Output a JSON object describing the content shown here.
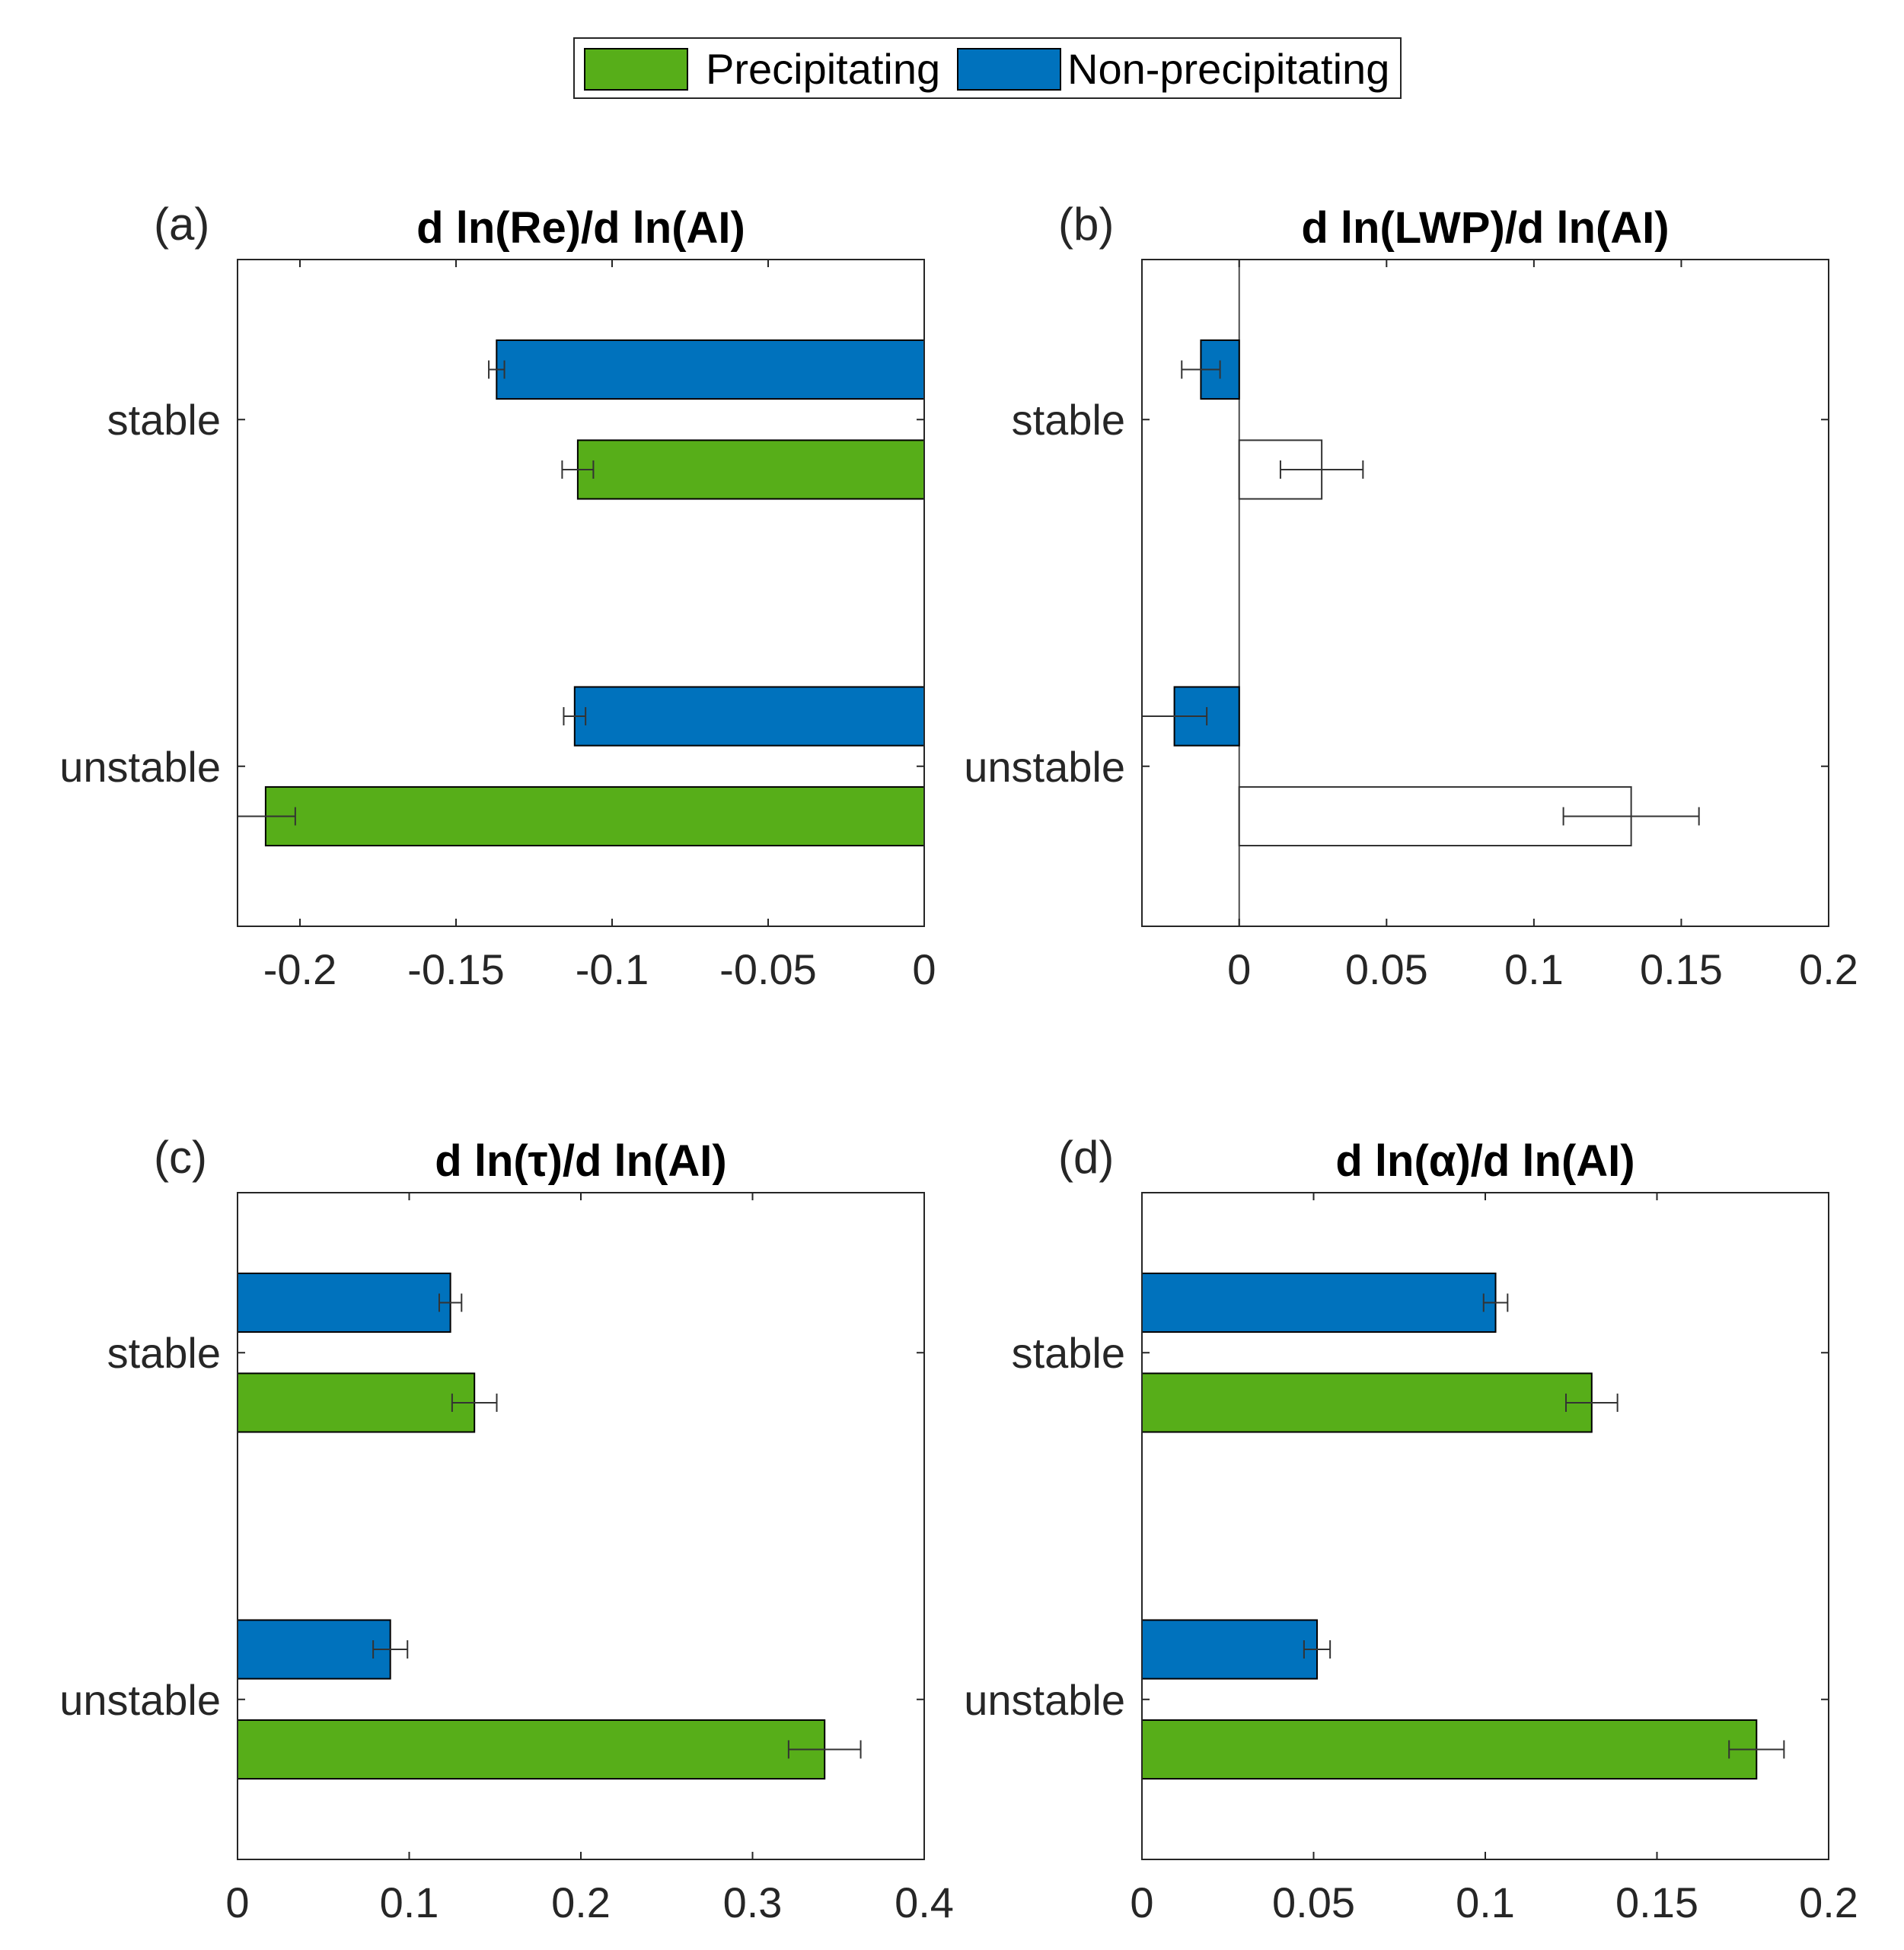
{
  "legend": {
    "items": [
      {
        "label": "Precipitating",
        "color": "#57ae19"
      },
      {
        "label": "Non-precipitating",
        "color": "#0072bd"
      }
    ]
  },
  "chart_data": [
    {
      "type": "bar",
      "orientation": "horizontal",
      "panel_label": "(a)",
      "title": "d ln(Re)/d ln(AI)",
      "categories": [
        "stable",
        "unstable"
      ],
      "xlim": [
        -0.22,
        0
      ],
      "xticks": [
        -0.2,
        -0.15,
        -0.1,
        -0.05,
        0
      ],
      "xtick_labels": [
        "-0.2",
        "-0.15",
        "-0.1",
        "-0.05",
        "0"
      ],
      "series": [
        {
          "name": "Non-precipitating",
          "values": [
            -0.137,
            -0.112
          ],
          "errors": [
            0.0025,
            0.0035
          ],
          "filled": [
            true,
            true
          ]
        },
        {
          "name": "Precipitating",
          "values": [
            -0.111,
            -0.211
          ],
          "errors": [
            0.005,
            0.0095
          ],
          "filled": [
            true,
            true
          ]
        }
      ]
    },
    {
      "type": "bar",
      "orientation": "horizontal",
      "panel_label": "(b)",
      "title": "d ln(LWP)/d ln(AI)",
      "categories": [
        "stable",
        "unstable"
      ],
      "xlim": [
        -0.033,
        0.2
      ],
      "xticks": [
        0,
        0.05,
        0.1,
        0.15,
        0.2
      ],
      "xtick_labels": [
        "0",
        "0.05",
        "0.1",
        "0.15",
        "0.2"
      ],
      "series": [
        {
          "name": "Non-precipitating",
          "values": [
            -0.013,
            -0.022
          ],
          "errors": [
            0.0065,
            0.011
          ],
          "filled": [
            true,
            true
          ]
        },
        {
          "name": "Precipitating",
          "values": [
            0.028,
            0.133
          ],
          "errors": [
            0.014,
            0.023
          ],
          "filled": [
            false,
            false
          ]
        }
      ]
    },
    {
      "type": "bar",
      "orientation": "horizontal",
      "panel_label": "(c)",
      "title": "d ln(τ)/d ln(AI)",
      "categories": [
        "stable",
        "unstable"
      ],
      "xlim": [
        0,
        0.4
      ],
      "xticks": [
        0,
        0.1,
        0.2,
        0.3,
        0.4
      ],
      "xtick_labels": [
        "0",
        "0.1",
        "0.2",
        "0.3",
        "0.4"
      ],
      "series": [
        {
          "name": "Non-precipitating",
          "values": [
            0.124,
            0.089
          ],
          "errors": [
            0.0065,
            0.01
          ],
          "filled": [
            true,
            true
          ]
        },
        {
          "name": "Precipitating",
          "values": [
            0.138,
            0.342
          ],
          "errors": [
            0.013,
            0.021
          ],
          "filled": [
            true,
            true
          ]
        }
      ]
    },
    {
      "type": "bar",
      "orientation": "horizontal",
      "panel_label": "(d)",
      "title": "d ln(α)/d ln(AI)",
      "categories": [
        "stable",
        "unstable"
      ],
      "xlim": [
        0,
        0.2
      ],
      "xticks": [
        0,
        0.05,
        0.1,
        0.15,
        0.2
      ],
      "xtick_labels": [
        "0",
        "0.05",
        "0.1",
        "0.15",
        "0.2"
      ],
      "series": [
        {
          "name": "Non-precipitating",
          "values": [
            0.103,
            0.051
          ],
          "errors": [
            0.0035,
            0.0038
          ],
          "filled": [
            true,
            true
          ]
        },
        {
          "name": "Precipitating",
          "values": [
            0.131,
            0.179
          ],
          "errors": [
            0.0075,
            0.008
          ],
          "filled": [
            true,
            true
          ]
        }
      ]
    }
  ]
}
